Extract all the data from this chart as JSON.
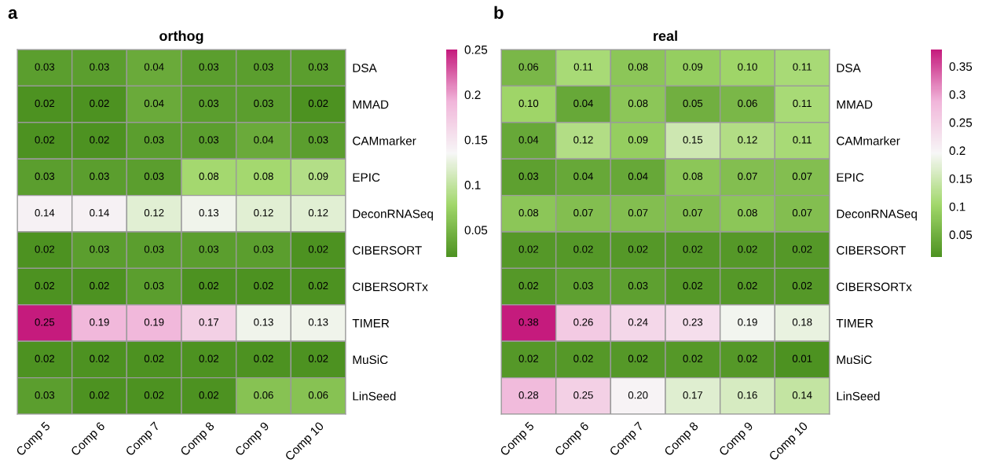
{
  "chart_data": [
    {
      "type": "heatmap",
      "title": "orthog",
      "annotations": [
        "a"
      ],
      "categories": [
        "Comp 5",
        "Comp 6",
        "Comp 7",
        "Comp 8",
        "Comp 9",
        "Comp 10"
      ],
      "y_categories": [
        "DSA",
        "MMAD",
        "CAMmarker",
        "EPIC",
        "DeconRNASeq",
        "CIBERSORT",
        "CIBERSORTx",
        "TIMER",
        "MuSiC",
        "LinSeed"
      ],
      "cells": [
        [
          0.03,
          0.03,
          0.04,
          0.03,
          0.03,
          0.03
        ],
        [
          0.02,
          0.02,
          0.04,
          0.03,
          0.03,
          0.02
        ],
        [
          0.02,
          0.02,
          0.03,
          0.03,
          0.04,
          0.03
        ],
        [
          0.03,
          0.03,
          0.03,
          0.08,
          0.08,
          0.09
        ],
        [
          0.14,
          0.14,
          0.12,
          0.13,
          0.12,
          0.12
        ],
        [
          0.02,
          0.03,
          0.03,
          0.03,
          0.03,
          0.02
        ],
        [
          0.02,
          0.02,
          0.03,
          0.02,
          0.02,
          0.02
        ],
        [
          0.25,
          0.19,
          0.19,
          0.17,
          0.13,
          0.13
        ],
        [
          0.02,
          0.02,
          0.02,
          0.02,
          0.02,
          0.02
        ],
        [
          0.03,
          0.02,
          0.02,
          0.02,
          0.06,
          0.06
        ]
      ],
      "cell_labels": [
        [
          "0.03",
          "0.03",
          "0.04",
          "0.03",
          "0.03",
          "0.03"
        ],
        [
          "0.02",
          "0.02",
          "0.04",
          "0.03",
          "0.03",
          "0.02"
        ],
        [
          "0.02",
          "0.02",
          "0.03",
          "0.03",
          "0.04",
          "0.03"
        ],
        [
          "0.03",
          "0.03",
          "0.03",
          "0.08",
          "0.08",
          "0.09"
        ],
        [
          "0.14",
          "0.14",
          "0.12",
          "0.13",
          "0.12",
          "0.12"
        ],
        [
          "0.02",
          "0.03",
          "0.03",
          "0.03",
          "0.03",
          "0.02"
        ],
        [
          "0.02",
          "0.02",
          "0.03",
          "0.02",
          "0.02",
          "0.02"
        ],
        [
          "0.25",
          "0.19",
          "0.19",
          "0.17",
          "0.13",
          "0.13"
        ],
        [
          "0.02",
          "0.02",
          "0.02",
          "0.02",
          "0.02",
          "0.02"
        ],
        [
          "0.03",
          "0.02",
          "0.02",
          "0.02",
          "0.06",
          "0.06"
        ]
      ],
      "clim": [
        0.02,
        0.25
      ],
      "cticks": [
        0.05,
        0.1,
        0.15,
        0.2,
        0.25
      ]
    },
    {
      "type": "heatmap",
      "title": "real",
      "annotations": [
        "b"
      ],
      "categories": [
        "Comp 5",
        "Comp 6",
        "Comp 7",
        "Comp 8",
        "Comp 9",
        "Comp 10"
      ],
      "y_categories": [
        "DSA",
        "MMAD",
        "CAMmarker",
        "EPIC",
        "DeconRNASeq",
        "CIBERSORT",
        "CIBERSORTx",
        "TIMER",
        "MuSiC",
        "LinSeed"
      ],
      "cells": [
        [
          0.06,
          0.11,
          0.08,
          0.09,
          0.1,
          0.11
        ],
        [
          0.1,
          0.04,
          0.08,
          0.05,
          0.06,
          0.11
        ],
        [
          0.04,
          0.12,
          0.09,
          0.15,
          0.12,
          0.11
        ],
        [
          0.03,
          0.04,
          0.04,
          0.08,
          0.07,
          0.07
        ],
        [
          0.08,
          0.07,
          0.07,
          0.07,
          0.08,
          0.07
        ],
        [
          0.02,
          0.02,
          0.02,
          0.02,
          0.02,
          0.02
        ],
        [
          0.02,
          0.03,
          0.03,
          0.02,
          0.02,
          0.02
        ],
        [
          0.38,
          0.26,
          0.24,
          0.23,
          0.19,
          0.18
        ],
        [
          0.02,
          0.02,
          0.02,
          0.02,
          0.02,
          0.01
        ],
        [
          0.28,
          0.25,
          0.2,
          0.17,
          0.16,
          0.14
        ]
      ],
      "cell_labels": [
        [
          "0.06",
          "0.11",
          "0.08",
          "0.09",
          "0.10",
          "0.11"
        ],
        [
          "0.10",
          "0.04",
          "0.08",
          "0.05",
          "0.06",
          "0.11"
        ],
        [
          "0.04",
          "0.12",
          "0.09",
          "0.15",
          "0.12",
          "0.11"
        ],
        [
          "0.03",
          "0.04",
          "0.04",
          "0.08",
          "0.07",
          "0.07"
        ],
        [
          "0.08",
          "0.07",
          "0.07",
          "0.07",
          "0.08",
          "0.07"
        ],
        [
          "0.02",
          "0.02",
          "0.02",
          "0.02",
          "0.02",
          "0.02"
        ],
        [
          "0.02",
          "0.03",
          "0.03",
          "0.02",
          "0.02",
          "0.02"
        ],
        [
          "0.38",
          "0.26",
          "0.24",
          "0.23",
          "0.19",
          "0.18"
        ],
        [
          "0.02",
          "0.02",
          "0.02",
          "0.02",
          "0.02",
          "0.01"
        ],
        [
          "0.28",
          "0.25",
          "0.20",
          "0.17",
          "0.16",
          "0.14"
        ]
      ],
      "clim": [
        0.01,
        0.38
      ],
      "cticks": [
        0.05,
        0.1,
        0.15,
        0.2,
        0.25,
        0.3,
        0.35
      ]
    }
  ]
}
